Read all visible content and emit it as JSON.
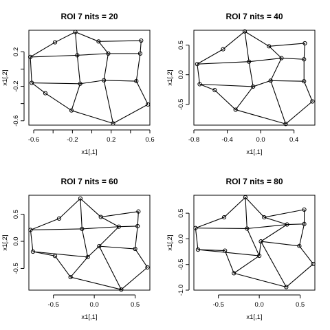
{
  "chart_data": [
    {
      "type": "scatter",
      "title": "ROI 7 nits =  20",
      "xlabel": "x1[,1]",
      "ylabel": "x1[,2]",
      "xlim": [
        -0.65,
        0.6
      ],
      "ylim": [
        -0.65,
        0.45
      ],
      "xticks": [
        {
          "v": -0.6,
          "label": "-0.6"
        },
        {
          "v": -0.2,
          "label": "-0.2"
        },
        {
          "v": 0.2,
          "label": "0.2"
        },
        {
          "v": 0.6,
          "label": "0.6"
        }
      ],
      "xminor": [
        -0.4,
        0.0,
        0.4
      ],
      "yticks": [
        {
          "v": -0.6,
          "label": "-0.6"
        },
        {
          "v": -0.2,
          "label": "-0.2"
        },
        {
          "v": 0.2,
          "label": "0.2"
        }
      ],
      "yminor": [
        -0.4,
        0.0
      ],
      "points": [
        [
          -0.635,
          0.14
        ],
        [
          -0.38,
          0.31
        ],
        [
          -0.17,
          0.43
        ],
        [
          0.07,
          0.32
        ],
        [
          0.51,
          0.33
        ],
        [
          -0.62,
          -0.16
        ],
        [
          -0.48,
          -0.28
        ],
        [
          -0.21,
          -0.48
        ],
        [
          0.22,
          -0.63
        ],
        [
          0.58,
          -0.41
        ],
        [
          -0.15,
          0.16
        ],
        [
          -0.12,
          -0.17
        ],
        [
          0.125,
          -0.13
        ],
        [
          0.46,
          -0.14
        ],
        [
          0.17,
          0.18
        ],
        [
          0.5,
          0.18
        ]
      ],
      "edges": [
        [
          0,
          1
        ],
        [
          1,
          2
        ],
        [
          2,
          3
        ],
        [
          3,
          4
        ],
        [
          0,
          5
        ],
        [
          5,
          6
        ],
        [
          6,
          7
        ],
        [
          7,
          8
        ],
        [
          8,
          9
        ],
        [
          0,
          10
        ],
        [
          10,
          14
        ],
        [
          14,
          15
        ],
        [
          5,
          11
        ],
        [
          11,
          12
        ],
        [
          12,
          13
        ],
        [
          2,
          10
        ],
        [
          10,
          11
        ],
        [
          11,
          7
        ],
        [
          3,
          14
        ],
        [
          14,
          12
        ],
        [
          12,
          8
        ],
        [
          4,
          15
        ],
        [
          15,
          13
        ],
        [
          13,
          9
        ]
      ]
    },
    {
      "type": "scatter",
      "title": "ROI 7 nits =  40",
      "xlabel": "x1[,1]",
      "ylabel": "x1[,2]",
      "xlim": [
        -0.8,
        0.65
      ],
      "ylim": [
        -0.85,
        0.75
      ],
      "xticks": [
        {
          "v": -0.8,
          "label": "-0.8"
        },
        {
          "v": -0.4,
          "label": "-0.4"
        },
        {
          "v": 0.0,
          "label": "0.0"
        },
        {
          "v": 0.4,
          "label": "0.4"
        }
      ],
      "xminor": [],
      "yticks": [
        {
          "v": 0.5,
          "label": "0.5"
        },
        {
          "v": 0.0,
          "label": "0.0"
        },
        {
          "v": -0.5,
          "label": "-0.5"
        }
      ],
      "yminor": [],
      "points": [
        [
          -0.76,
          0.18
        ],
        [
          -0.45,
          0.43
        ],
        [
          -0.19,
          0.73
        ],
        [
          0.1,
          0.48
        ],
        [
          0.53,
          0.53
        ],
        [
          -0.73,
          -0.16
        ],
        [
          -0.55,
          -0.26
        ],
        [
          -0.3,
          -0.59
        ],
        [
          0.3,
          -0.83
        ],
        [
          0.62,
          -0.45
        ],
        [
          -0.14,
          0.22
        ],
        [
          -0.09,
          -0.2
        ],
        [
          0.12,
          -0.1
        ],
        [
          0.52,
          -0.11
        ],
        [
          0.25,
          0.28
        ],
        [
          0.52,
          0.26
        ]
      ],
      "edges": [
        [
          0,
          1
        ],
        [
          1,
          2
        ],
        [
          2,
          3
        ],
        [
          3,
          4
        ],
        [
          0,
          5
        ],
        [
          5,
          6
        ],
        [
          6,
          7
        ],
        [
          7,
          8
        ],
        [
          8,
          9
        ],
        [
          0,
          10
        ],
        [
          10,
          14
        ],
        [
          14,
          15
        ],
        [
          5,
          11
        ],
        [
          11,
          12
        ],
        [
          12,
          13
        ],
        [
          2,
          10
        ],
        [
          10,
          11
        ],
        [
          11,
          7
        ],
        [
          3,
          14
        ],
        [
          14,
          12
        ],
        [
          12,
          8
        ],
        [
          4,
          15
        ],
        [
          15,
          13
        ],
        [
          13,
          9
        ]
      ]
    },
    {
      "type": "scatter",
      "title": "ROI 7 nits =  60",
      "xlabel": "x1[,1]",
      "ylabel": "x1[,2]",
      "xlim": [
        -0.8,
        0.68
      ],
      "ylim": [
        -0.9,
        0.85
      ],
      "xticks": [
        {
          "v": -0.5,
          "label": "-0.5"
        },
        {
          "v": 0.0,
          "label": "0.0"
        },
        {
          "v": 0.5,
          "label": "0.5"
        }
      ],
      "xminor": [],
      "yticks": [
        {
          "v": 0.5,
          "label": "0.5"
        },
        {
          "v": 0.0,
          "label": "0.0"
        },
        {
          "v": -0.5,
          "label": "-0.5"
        }
      ],
      "yminor": [],
      "points": [
        [
          -0.78,
          0.21
        ],
        [
          -0.43,
          0.42
        ],
        [
          -0.17,
          0.79
        ],
        [
          0.08,
          0.45
        ],
        [
          0.54,
          0.55
        ],
        [
          -0.75,
          -0.19
        ],
        [
          -0.48,
          -0.27
        ],
        [
          -0.29,
          -0.66
        ],
        [
          0.33,
          -0.89
        ],
        [
          0.65,
          -0.48
        ],
        [
          -0.15,
          0.23
        ],
        [
          -0.08,
          -0.29
        ],
        [
          0.06,
          -0.09
        ],
        [
          0.5,
          -0.14
        ],
        [
          0.3,
          0.27
        ],
        [
          0.53,
          0.28
        ]
      ],
      "edges": [
        [
          0,
          1
        ],
        [
          1,
          2
        ],
        [
          2,
          3
        ],
        [
          3,
          4
        ],
        [
          0,
          5
        ],
        [
          5,
          6
        ],
        [
          6,
          7
        ],
        [
          7,
          8
        ],
        [
          8,
          9
        ],
        [
          0,
          10
        ],
        [
          10,
          14
        ],
        [
          14,
          15
        ],
        [
          5,
          11
        ],
        [
          11,
          12
        ],
        [
          12,
          13
        ],
        [
          2,
          10
        ],
        [
          10,
          11
        ],
        [
          11,
          7
        ],
        [
          3,
          14
        ],
        [
          14,
          12
        ],
        [
          12,
          8
        ],
        [
          4,
          15
        ],
        [
          15,
          13
        ],
        [
          13,
          9
        ]
      ]
    },
    {
      "type": "scatter",
      "title": "ROI 7 nits =  80",
      "xlabel": "x1[,1]",
      "ylabel": "x1[,2]",
      "xlim": [
        -0.8,
        0.68
      ],
      "ylim": [
        -1.0,
        0.85
      ],
      "xticks": [
        {
          "v": -0.5,
          "label": "-0.5"
        },
        {
          "v": 0.0,
          "label": "0.0"
        },
        {
          "v": 0.5,
          "label": "0.5"
        }
      ],
      "xminor": [],
      "yticks": [
        {
          "v": 0.5,
          "label": "0.5"
        },
        {
          "v": 0.0,
          "label": "0.0"
        },
        {
          "v": -0.5,
          "label": "-0.5"
        },
        {
          "v": -1.0,
          "label": "-1.0"
        }
      ],
      "yminor": [],
      "points": [
        [
          -0.78,
          0.21
        ],
        [
          -0.43,
          0.42
        ],
        [
          -0.17,
          0.81
        ],
        [
          0.06,
          0.42
        ],
        [
          0.55,
          0.57
        ],
        [
          -0.75,
          -0.21
        ],
        [
          -0.42,
          -0.23
        ],
        [
          -0.31,
          -0.67
        ],
        [
          0.33,
          -0.94
        ],
        [
          0.66,
          -0.49
        ],
        [
          -0.15,
          0.2
        ],
        [
          0.0,
          -0.33
        ],
        [
          0.02,
          -0.05
        ],
        [
          0.49,
          -0.14
        ],
        [
          0.34,
          0.28
        ],
        [
          0.55,
          0.29
        ]
      ],
      "edges": [
        [
          0,
          1
        ],
        [
          1,
          2
        ],
        [
          2,
          3
        ],
        [
          3,
          4
        ],
        [
          0,
          5
        ],
        [
          5,
          6
        ],
        [
          6,
          7
        ],
        [
          7,
          8
        ],
        [
          8,
          9
        ],
        [
          0,
          10
        ],
        [
          10,
          14
        ],
        [
          14,
          15
        ],
        [
          5,
          11
        ],
        [
          11,
          12
        ],
        [
          12,
          13
        ],
        [
          2,
          10
        ],
        [
          10,
          11
        ],
        [
          11,
          7
        ],
        [
          3,
          14
        ],
        [
          14,
          12
        ],
        [
          12,
          8
        ],
        [
          4,
          15
        ],
        [
          15,
          13
        ],
        [
          13,
          9
        ]
      ]
    }
  ]
}
